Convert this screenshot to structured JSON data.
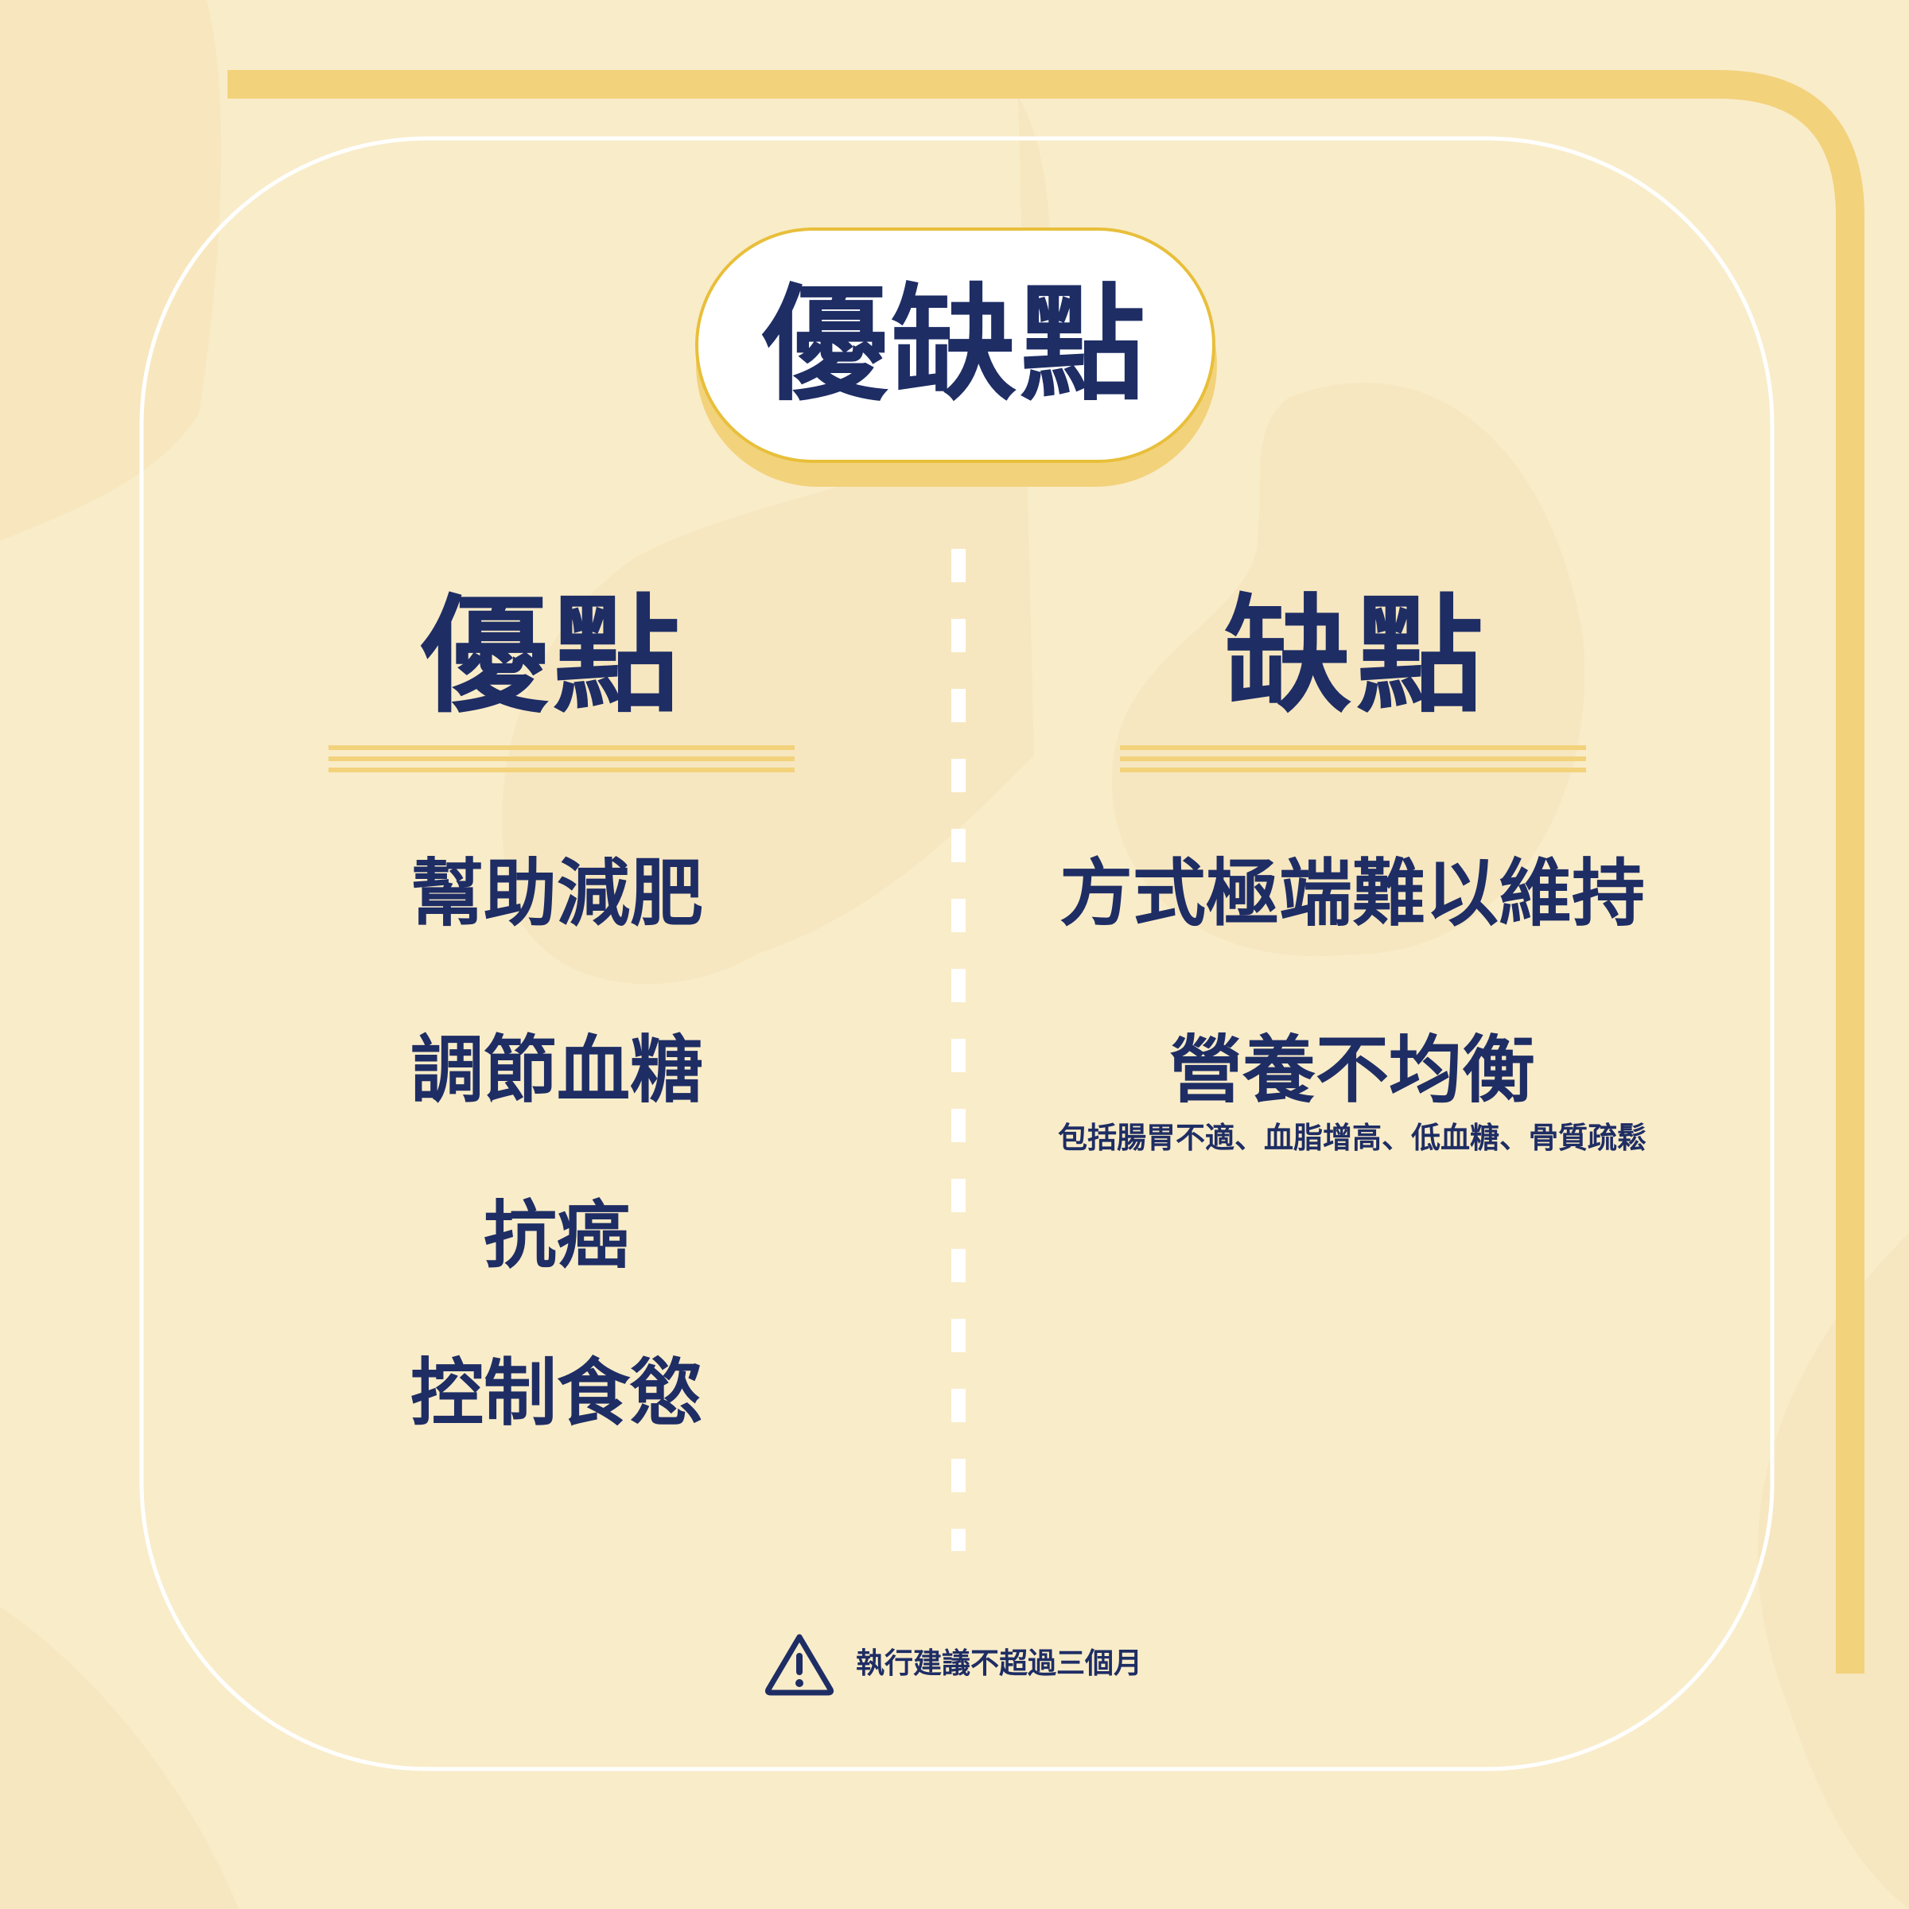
{
  "title": "優缺點",
  "pros": {
    "heading": "優點",
    "items": [
      "幫助減肥",
      "調節血糖",
      "抗癌",
      "控制食慾"
    ]
  },
  "cons": {
    "heading": "缺點",
    "items": [
      {
        "label": "方式極端難以維持"
      },
      {
        "label": "營養不均衡",
        "note": "包括腸胃不適、血脂增高、低血糖、骨質疏鬆"
      }
    ]
  },
  "warning": {
    "icon": "warning-icon",
    "text": "執行建議不超過三個月"
  },
  "colors": {
    "background": "#f9ecc9",
    "navy": "#1e2d64",
    "gold": "#f3d27c",
    "gold_border": "#e8bf3a",
    "white": "#ffffff"
  }
}
